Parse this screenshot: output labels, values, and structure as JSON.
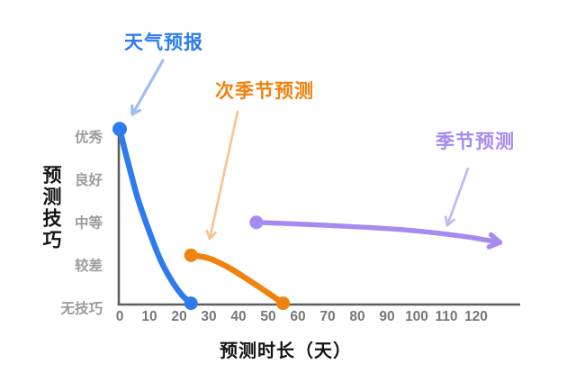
{
  "chart_data": {
    "type": "line",
    "title": "",
    "xlabel": "预测时长（天）",
    "ylabel": "预测技巧",
    "x_ticks": [
      0,
      10,
      20,
      30,
      40,
      50,
      60,
      70,
      80,
      90,
      100,
      110,
      120
    ],
    "x_range_days": [
      0,
      136
    ],
    "y_categories": [
      "无技巧",
      "较差",
      "中等",
      "良好",
      "优秀"
    ],
    "grid": false,
    "legend_position": "inline-annotated-labels",
    "axis_color": "#5f5f61",
    "tick_label_color": "#77777a",
    "category_label_color": "#9b9b9e",
    "title_text_color": "#141414",
    "series": [
      {
        "name": "天气预报",
        "color": "#2e7bf0",
        "annotation_arrow_color": "#9dbef5",
        "marker_start": true,
        "marker_end": true,
        "end_style": "dot",
        "points_day_skill": [
          [
            0,
            4.1
          ],
          [
            2.5,
            3.4
          ],
          [
            6,
            2.5
          ],
          [
            10,
            1.7
          ],
          [
            14,
            1.0
          ],
          [
            18,
            0.5
          ],
          [
            21,
            0.22
          ],
          [
            24,
            0.03
          ]
        ]
      },
      {
        "name": "次季节预测",
        "color": "#f0820e",
        "annotation_arrow_color": "#f6c493",
        "marker_start": true,
        "marker_end": true,
        "end_style": "dot",
        "points_day_skill": [
          [
            24,
            1.15
          ],
          [
            30,
            1.08
          ],
          [
            37,
            0.85
          ],
          [
            45,
            0.5
          ],
          [
            51,
            0.22
          ],
          [
            55,
            0.03
          ]
        ]
      },
      {
        "name": "季节预测",
        "color": "#a78af0",
        "annotation_arrow_color": "#c6b5f5",
        "marker_start": true,
        "marker_end": false,
        "end_style": "arrow",
        "points_day_skill": [
          [
            46,
            1.92
          ],
          [
            70,
            1.85
          ],
          [
            95,
            1.75
          ],
          [
            115,
            1.6
          ],
          [
            128,
            1.45
          ]
        ]
      }
    ]
  }
}
